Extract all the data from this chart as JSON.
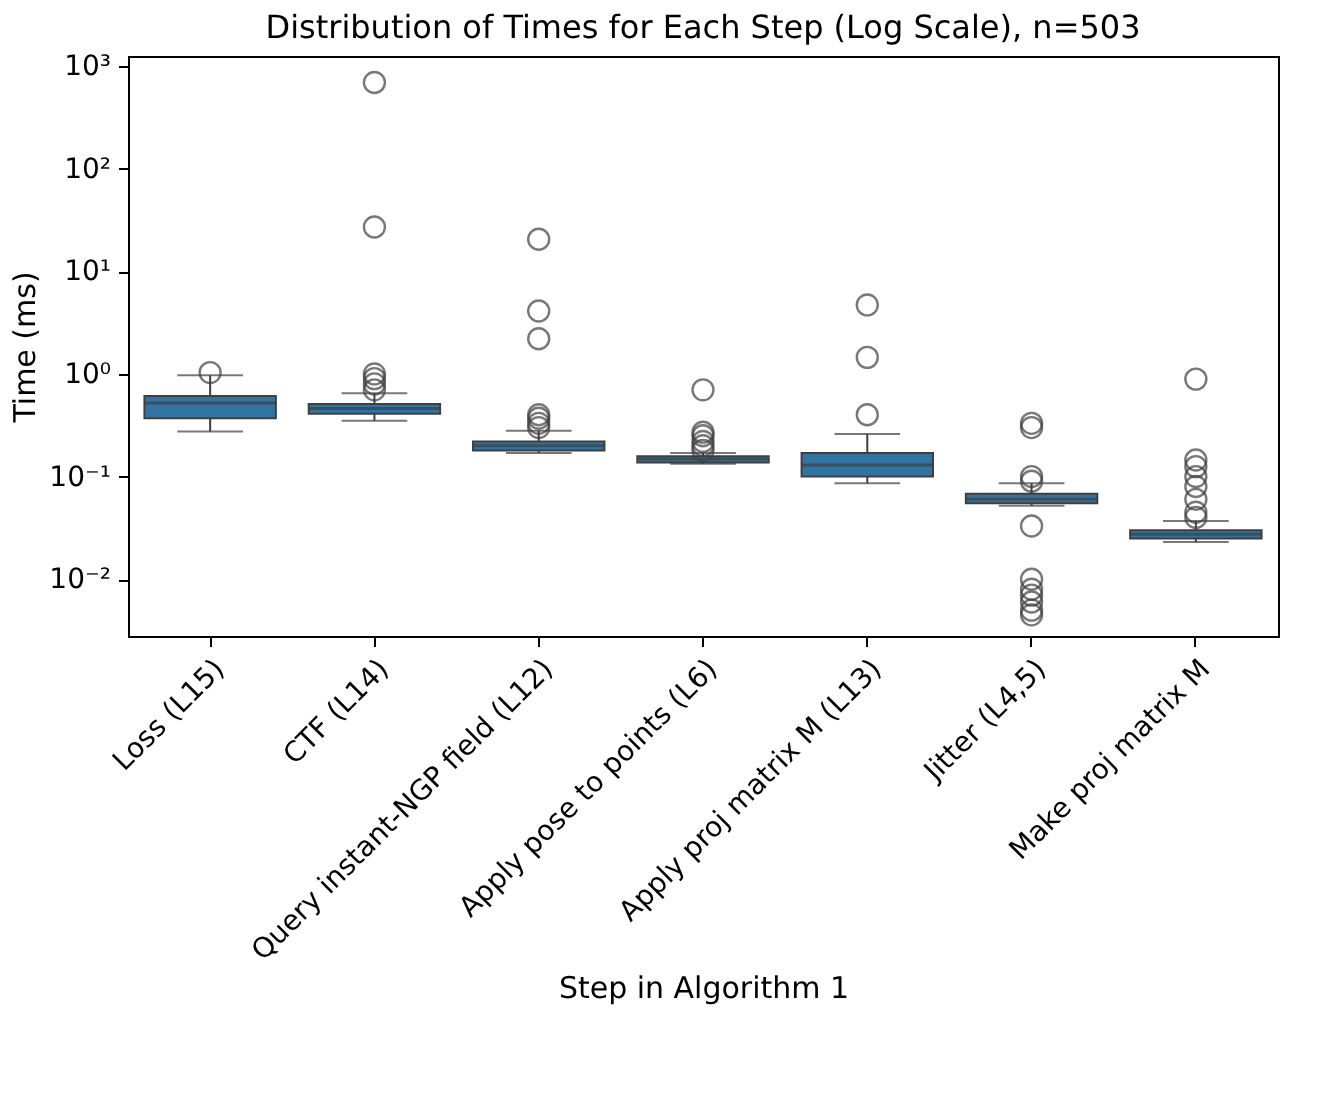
{
  "chart_data": {
    "type": "box",
    "title": "Distribution of Times for Each Step (Log Scale), n=503",
    "xlabel": "Step in Algorithm 1",
    "ylabel": "Time (ms)",
    "categories": [
      "Loss (L15)",
      "CTF (L14)",
      "Query instant-NGP field (L12)",
      "Apply pose to points (L6)",
      "Apply proj matrix M (L13)",
      "Jitter (L4,5)",
      "Make proj matrix M"
    ],
    "color": "#3274a1",
    "log": true,
    "grid": false,
    "ylim": [
      0.0028,
      1250
    ],
    "yticks": [
      {
        "value": 0.01,
        "label": "10⁻²"
      },
      {
        "value": 0.1,
        "label": "10⁻¹"
      },
      {
        "value": 1,
        "label": "10⁰"
      },
      {
        "value": 10,
        "label": "10¹"
      },
      {
        "value": 100,
        "label": "10²"
      },
      {
        "value": 1000,
        "label": "10³"
      }
    ],
    "boxes": [
      {
        "low": 0.275,
        "q1": 0.37,
        "median": 0.52,
        "q3": 0.61,
        "high": 0.97,
        "outliers": [
          1.03
        ]
      },
      {
        "low": 0.35,
        "q1": 0.41,
        "median": 0.46,
        "q3": 0.51,
        "high": 0.65,
        "outliers": [
          690,
          27,
          1.0,
          0.9,
          0.8,
          0.7
        ]
      },
      {
        "low": 0.17,
        "q1": 0.18,
        "median": 0.2,
        "q3": 0.22,
        "high": 0.28,
        "outliers": [
          20.5,
          4.1,
          2.2,
          0.4,
          0.37,
          0.33,
          0.3
        ]
      },
      {
        "low": 0.133,
        "q1": 0.137,
        "median": 0.148,
        "q3": 0.158,
        "high": 0.17,
        "outliers": [
          0.7,
          0.27,
          0.25,
          0.22,
          0.2,
          0.18
        ]
      },
      {
        "low": 0.086,
        "q1": 0.1,
        "median": 0.13,
        "q3": 0.17,
        "high": 0.26,
        "outliers": [
          4.7,
          1.45,
          0.4
        ]
      },
      {
        "low": 0.052,
        "q1": 0.055,
        "median": 0.06,
        "q3": 0.068,
        "high": 0.086,
        "outliers": [
          0.33,
          0.3,
          0.1,
          0.09,
          0.033,
          0.01,
          0.008,
          0.007,
          0.006,
          0.005,
          0.0045
        ]
      },
      {
        "low": 0.023,
        "q1": 0.025,
        "median": 0.0275,
        "q3": 0.03,
        "high": 0.037,
        "outliers": [
          0.89,
          0.145,
          0.125,
          0.1,
          0.08,
          0.06,
          0.045,
          0.04
        ]
      }
    ]
  }
}
